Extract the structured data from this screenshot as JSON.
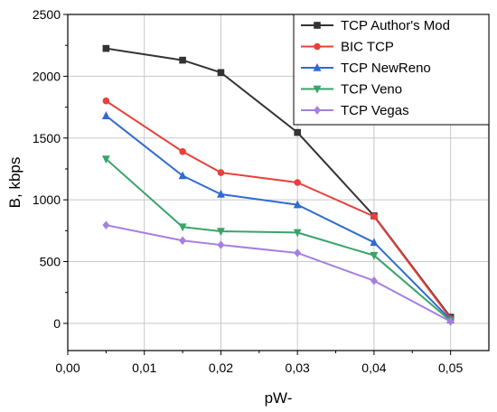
{
  "chart_data": {
    "type": "line",
    "xlabel": "pW-",
    "ylabel": "B, kbps",
    "xlim": [
      0.0,
      0.055
    ],
    "ylim": [
      -220,
      2500
    ],
    "x_ticks": [
      {
        "value": 0.0,
        "label": "0,00"
      },
      {
        "value": 0.01,
        "label": "0,01"
      },
      {
        "value": 0.02,
        "label": "0,02"
      },
      {
        "value": 0.03,
        "label": "0,03"
      },
      {
        "value": 0.04,
        "label": "0,04"
      },
      {
        "value": 0.05,
        "label": "0,05"
      }
    ],
    "y_ticks": [
      {
        "value": 0,
        "label": "0"
      },
      {
        "value": 500,
        "label": "500"
      },
      {
        "value": 1000,
        "label": "1000"
      },
      {
        "value": 1500,
        "label": "1500"
      },
      {
        "value": 2000,
        "label": "2000"
      },
      {
        "value": 2500,
        "label": "2500"
      }
    ],
    "grid": true,
    "legend_position": "top-right",
    "x": [
      0.005,
      0.015,
      0.02,
      0.03,
      0.04,
      0.05
    ],
    "series": [
      {
        "name": "TCP Author's Mod",
        "color": "#333333",
        "marker": "square",
        "values": [
          2225,
          2130,
          2030,
          1545,
          870,
          50
        ]
      },
      {
        "name": "BIC TCP",
        "color": "#e8403a",
        "marker": "circle",
        "values": [
          1800,
          1390,
          1220,
          1140,
          865,
          40
        ]
      },
      {
        "name": "TCP NewReno",
        "color": "#2f6bd0",
        "marker": "triangle-up",
        "values": [
          1680,
          1195,
          1045,
          960,
          655,
          30
        ]
      },
      {
        "name": "TCP Veno",
        "color": "#3aa36a",
        "marker": "triangle-down",
        "values": [
          1330,
          780,
          745,
          735,
          550,
          20
        ]
      },
      {
        "name": "TCP Vegas",
        "color": "#a67fe0",
        "marker": "diamond",
        "values": [
          795,
          670,
          635,
          570,
          345,
          15
        ]
      }
    ]
  }
}
